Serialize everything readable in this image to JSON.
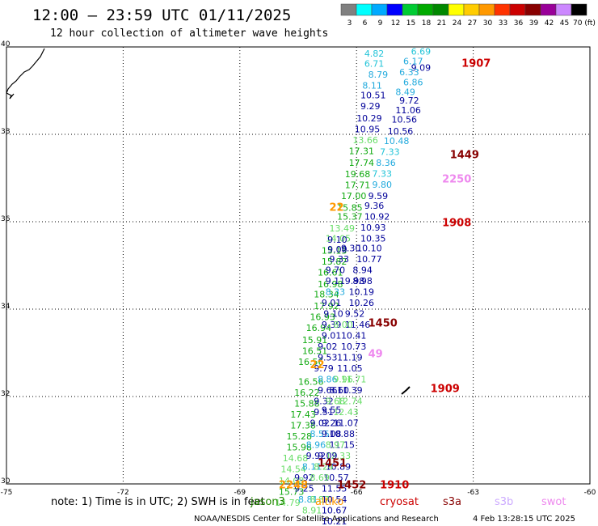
{
  "header": {
    "title": "12:00 – 23:59 UTC 01/11/2025",
    "subtitle": "12 hour collection of altimeter wave heights"
  },
  "colorbar": {
    "labels": [
      "3",
      "6",
      "9",
      "12",
      "15",
      "18",
      "21",
      "24",
      "27",
      "30",
      "33",
      "36",
      "39",
      "42",
      "45",
      "70 (ft)"
    ],
    "colors": [
      "#808080",
      "#00ffff",
      "#00aaff",
      "#0000ff",
      "#00cc33",
      "#00aa00",
      "#008800",
      "#ffff00",
      "#ffcc00",
      "#ff9900",
      "#ff3300",
      "#cc0000",
      "#880000",
      "#990099",
      "#cc88ff",
      "#000000"
    ]
  },
  "axes": {
    "lon_labels": [
      "-75",
      "-72",
      "-69",
      "-66",
      "-63",
      "-60"
    ],
    "lat_labels": [
      "40",
      "38",
      "36",
      "34",
      "32",
      "30"
    ]
  },
  "chart_data": {
    "type": "scatter",
    "xlim": [
      -75,
      -60
    ],
    "ylim": [
      30,
      40
    ],
    "grid": true,
    "points": [
      {
        "lon": -65.8,
        "lat": 39.78,
        "text": "4.82",
        "color": "#22c4d8"
      },
      {
        "lon": -65.8,
        "lat": 39.55,
        "text": "6.71",
        "color": "#22c4d8"
      },
      {
        "lon": -65.7,
        "lat": 39.3,
        "text": "8.79",
        "color": "#22aadd"
      },
      {
        "lon": -65.85,
        "lat": 39.05,
        "text": "8.11",
        "color": "#22aadd"
      },
      {
        "lon": -65.9,
        "lat": 38.82,
        "text": "10.51",
        "color": "#000099"
      },
      {
        "lon": -65.9,
        "lat": 38.57,
        "text": "9.29",
        "color": "#000099"
      },
      {
        "lon": -66.0,
        "lat": 38.3,
        "text": "10.29",
        "color": "#000099"
      },
      {
        "lon": -66.05,
        "lat": 38.05,
        "text": "10.95",
        "color": "#000099"
      },
      {
        "lon": -66.1,
        "lat": 37.8,
        "text": "13.66",
        "color": "#66dd66"
      },
      {
        "lon": -66.2,
        "lat": 37.55,
        "text": "17.31",
        "color": "#11aa11"
      },
      {
        "lon": -66.2,
        "lat": 37.28,
        "text": "17.74",
        "color": "#11aa11"
      },
      {
        "lon": -66.3,
        "lat": 37.02,
        "text": "19.68",
        "color": "#11aa11"
      },
      {
        "lon": -66.3,
        "lat": 36.77,
        "text": "17.71",
        "color": "#11aa11"
      },
      {
        "lon": -66.4,
        "lat": 36.52,
        "text": "17.00",
        "color": "#11aa11"
      },
      {
        "lon": -66.5,
        "lat": 36.25,
        "text": "15.85",
        "color": "#11aa11"
      },
      {
        "lon": -66.5,
        "lat": 36.05,
        "text": "15.37",
        "color": "#11aa11"
      },
      {
        "lon": -66.7,
        "lat": 35.78,
        "text": "13.49",
        "color": "#66dd66"
      },
      {
        "lon": -66.8,
        "lat": 35.55,
        "text": "14.05",
        "color": "#66dd66"
      },
      {
        "lon": -66.9,
        "lat": 35.27,
        "text": "15.13",
        "color": "#11aa11"
      },
      {
        "lon": -66.9,
        "lat": 35.02,
        "text": "15.82",
        "color": "#11aa11"
      },
      {
        "lon": -67.0,
        "lat": 34.77,
        "text": "16.61",
        "color": "#11aa11"
      },
      {
        "lon": -67.0,
        "lat": 34.5,
        "text": "16.98",
        "color": "#11aa11"
      },
      {
        "lon": -67.1,
        "lat": 34.27,
        "text": "18.34",
        "color": "#11aa11"
      },
      {
        "lon": -67.1,
        "lat": 34.0,
        "text": "17.92",
        "color": "#11aa11"
      },
      {
        "lon": -67.2,
        "lat": 33.75,
        "text": "16.93",
        "color": "#11aa11"
      },
      {
        "lon": -67.3,
        "lat": 33.5,
        "text": "16.94",
        "color": "#11aa11"
      },
      {
        "lon": -67.4,
        "lat": 33.22,
        "text": "15.91",
        "color": "#11aa11"
      },
      {
        "lon": -67.4,
        "lat": 32.97,
        "text": "16.51",
        "color": "#11aa11"
      },
      {
        "lon": -67.5,
        "lat": 32.72,
        "text": "16.56",
        "color": "#11aa11"
      },
      {
        "lon": -67.5,
        "lat": 32.27,
        "text": "16.56",
        "color": "#11aa11"
      },
      {
        "lon": -67.6,
        "lat": 32.02,
        "text": "16.22",
        "color": "#11aa11"
      },
      {
        "lon": -67.6,
        "lat": 31.77,
        "text": "15.88",
        "color": "#11aa11"
      },
      {
        "lon": -67.7,
        "lat": 31.52,
        "text": "17.43",
        "color": "#11aa11"
      },
      {
        "lon": -67.7,
        "lat": 31.27,
        "text": "17.38",
        "color": "#11aa11"
      },
      {
        "lon": -67.8,
        "lat": 31.02,
        "text": "15.28",
        "color": "#11aa11"
      },
      {
        "lon": -67.8,
        "lat": 30.77,
        "text": "15.98",
        "color": "#11aa11"
      },
      {
        "lon": -67.9,
        "lat": 30.52,
        "text": "14.68",
        "color": "#66dd66"
      },
      {
        "lon": -67.95,
        "lat": 30.27,
        "text": "14.54",
        "color": "#66dd66"
      },
      {
        "lon": -68.0,
        "lat": 30.0,
        "text": "14.08",
        "color": "#66dd66"
      },
      {
        "lon": -68.0,
        "lat": 29.75,
        "text": "15.73",
        "color": "#11aa11"
      },
      {
        "lon": -68.1,
        "lat": 29.5,
        "text": "14.79",
        "color": "#66dd66"
      },
      {
        "lon": -64.6,
        "lat": 39.82,
        "text": "6.69",
        "color": "#22c4d8"
      },
      {
        "lon": -64.8,
        "lat": 39.6,
        "text": "6.17",
        "color": "#22aadd"
      },
      {
        "lon": -64.6,
        "lat": 39.45,
        "text": "9.09",
        "color": "#000099"
      },
      {
        "lon": -64.9,
        "lat": 39.35,
        "text": "6.33",
        "color": "#22aadd"
      },
      {
        "lon": -64.8,
        "lat": 39.12,
        "text": "6.86",
        "color": "#22aadd"
      },
      {
        "lon": -65.0,
        "lat": 38.9,
        "text": "8.49",
        "color": "#22aadd"
      },
      {
        "lon": -64.9,
        "lat": 38.7,
        "text": "9.72",
        "color": "#000099"
      },
      {
        "lon": -65.0,
        "lat": 38.48,
        "text": "11.06",
        "color": "#000099"
      },
      {
        "lon": -65.1,
        "lat": 38.27,
        "text": "10.56",
        "color": "#000099"
      },
      {
        "lon": -65.2,
        "lat": 38.0,
        "text": "10.56",
        "color": "#000099"
      },
      {
        "lon": -65.3,
        "lat": 37.78,
        "text": "10.48",
        "color": "#22aadd"
      },
      {
        "lon": -65.4,
        "lat": 37.53,
        "text": "7.33",
        "color": "#22c4d8"
      },
      {
        "lon": -65.5,
        "lat": 37.28,
        "text": "8.36",
        "color": "#22aadd"
      },
      {
        "lon": -65.6,
        "lat": 37.03,
        "text": "7.33",
        "color": "#22c4d8"
      },
      {
        "lon": -65.6,
        "lat": 36.78,
        "text": "9.80",
        "color": "#22aadd"
      },
      {
        "lon": -65.7,
        "lat": 36.52,
        "text": "9.59",
        "color": "#000099"
      },
      {
        "lon": -65.8,
        "lat": 36.3,
        "text": "9.36",
        "color": "#000099"
      },
      {
        "lon": -65.8,
        "lat": 36.05,
        "text": "10.92",
        "color": "#000099"
      },
      {
        "lon": -65.9,
        "lat": 35.8,
        "text": "10.93",
        "color": "#000099"
      },
      {
        "lon": -65.9,
        "lat": 35.55,
        "text": "10.35",
        "color": "#000099"
      },
      {
        "lon": -66.0,
        "lat": 35.32,
        "text": "10.10",
        "color": "#000099"
      },
      {
        "lon": -66.0,
        "lat": 35.07,
        "text": "10.77",
        "color": "#000099"
      },
      {
        "lon": -66.1,
        "lat": 34.82,
        "text": "8.94",
        "color": "#000099"
      },
      {
        "lon": -66.1,
        "lat": 34.57,
        "text": "8.98",
        "color": "#000099"
      },
      {
        "lon": -66.2,
        "lat": 34.32,
        "text": "10.19",
        "color": "#000099"
      },
      {
        "lon": -66.2,
        "lat": 34.07,
        "text": "10.26",
        "color": "#000099"
      },
      {
        "lon": -66.3,
        "lat": 33.82,
        "text": "9.52",
        "color": "#000099"
      },
      {
        "lon": -66.3,
        "lat": 33.57,
        "text": "11.46",
        "color": "#000099"
      },
      {
        "lon": -66.4,
        "lat": 33.32,
        "text": "10.41",
        "color": "#000099"
      },
      {
        "lon": -66.4,
        "lat": 33.07,
        "text": "10.73",
        "color": "#000099"
      },
      {
        "lon": -66.5,
        "lat": 32.82,
        "text": "11.19",
        "color": "#000099"
      },
      {
        "lon": -66.5,
        "lat": 32.57,
        "text": "11.05",
        "color": "#000099"
      },
      {
        "lon": -66.4,
        "lat": 32.32,
        "text": "11.71",
        "color": "#66dd66"
      },
      {
        "lon": -66.5,
        "lat": 32.07,
        "text": "11.39",
        "color": "#000099"
      },
      {
        "lon": -66.5,
        "lat": 31.82,
        "text": "12.74",
        "color": "#66dd66"
      },
      {
        "lon": -66.6,
        "lat": 31.57,
        "text": "12.43",
        "color": "#66dd66"
      },
      {
        "lon": -66.6,
        "lat": 31.32,
        "text": "11.07",
        "color": "#000099"
      },
      {
        "lon": -66.7,
        "lat": 31.07,
        "text": "10.88",
        "color": "#000099"
      },
      {
        "lon": -66.7,
        "lat": 30.82,
        "text": "11.15",
        "color": "#000099"
      },
      {
        "lon": -66.8,
        "lat": 30.57,
        "text": "12.33",
        "color": "#66dd66"
      },
      {
        "lon": -66.8,
        "lat": 30.32,
        "text": "10.89",
        "color": "#000099"
      },
      {
        "lon": -66.85,
        "lat": 30.07,
        "text": "10.57",
        "color": "#000099"
      },
      {
        "lon": -66.9,
        "lat": 29.82,
        "text": "11.55",
        "color": "#000099"
      },
      {
        "lon": -66.9,
        "lat": 29.57,
        "text": "10.54",
        "color": "#000099"
      },
      {
        "lon": -66.9,
        "lat": 29.32,
        "text": "10.67",
        "color": "#000099"
      },
      {
        "lon": -66.9,
        "lat": 29.07,
        "text": "10.21",
        "color": "#000099"
      },
      {
        "lon": -66.75,
        "lat": 35.52,
        "text": "9.10",
        "color": "#000099"
      },
      {
        "lon": -66.75,
        "lat": 35.3,
        "text": "9.00",
        "color": "#000099"
      },
      {
        "lon": -66.7,
        "lat": 35.07,
        "text": "9.33",
        "color": "#000099"
      },
      {
        "lon": -66.8,
        "lat": 34.82,
        "text": "9.70",
        "color": "#000099"
      },
      {
        "lon": -66.8,
        "lat": 34.57,
        "text": "9.11",
        "color": "#000099"
      },
      {
        "lon": -66.8,
        "lat": 34.32,
        "text": "8.33",
        "color": "#22aadd"
      },
      {
        "lon": -66.9,
        "lat": 34.07,
        "text": "9.01",
        "color": "#000099"
      },
      {
        "lon": -66.85,
        "lat": 33.82,
        "text": "9.10",
        "color": "#000099"
      },
      {
        "lon": -66.9,
        "lat": 33.57,
        "text": "9.39",
        "color": "#000099"
      },
      {
        "lon": -66.9,
        "lat": 33.32,
        "text": "9.01",
        "color": "#000099"
      },
      {
        "lon": -67.0,
        "lat": 33.07,
        "text": "9.02",
        "color": "#000099"
      },
      {
        "lon": -67.0,
        "lat": 32.82,
        "text": "9.53",
        "color": "#000099"
      },
      {
        "lon": -67.1,
        "lat": 32.57,
        "text": "9.79",
        "color": "#000099"
      },
      {
        "lon": -67.0,
        "lat": 32.32,
        "text": "8.86",
        "color": "#22aadd"
      },
      {
        "lon": -67.0,
        "lat": 32.07,
        "text": "9.66",
        "color": "#000099"
      },
      {
        "lon": -67.1,
        "lat": 31.82,
        "text": "9.32",
        "color": "#000099"
      },
      {
        "lon": -67.1,
        "lat": 31.57,
        "text": "9.51",
        "color": "#000099"
      },
      {
        "lon": -67.2,
        "lat": 31.32,
        "text": "9.02",
        "color": "#000099"
      },
      {
        "lon": -67.2,
        "lat": 31.07,
        "text": "8.55",
        "color": "#22aadd"
      },
      {
        "lon": -67.3,
        "lat": 30.82,
        "text": "8.96",
        "color": "#22aadd"
      },
      {
        "lon": -67.3,
        "lat": 30.57,
        "text": "9.92",
        "color": "#000099"
      },
      {
        "lon": -67.4,
        "lat": 30.32,
        "text": "8.11",
        "color": "#22aadd"
      },
      {
        "lon": -67.6,
        "lat": 30.07,
        "text": "9.92",
        "color": "#000099"
      },
      {
        "lon": -67.6,
        "lat": 29.82,
        "text": "9.25",
        "color": "#000099"
      },
      {
        "lon": -67.5,
        "lat": 29.57,
        "text": "8.81",
        "color": "#22aadd"
      },
      {
        "lon": -66.4,
        "lat": 35.32,
        "text": "9.30",
        "color": "#000099"
      },
      {
        "lon": -66.3,
        "lat": 34.57,
        "text": "9.98",
        "color": "#000099"
      },
      {
        "lon": -66.9,
        "lat": 31.62,
        "text": "9.55",
        "color": "#000099"
      },
      {
        "lon": -66.9,
        "lat": 31.32,
        "text": "9.26",
        "color": "#000099"
      },
      {
        "lon": -66.9,
        "lat": 31.07,
        "text": "9.08",
        "color": "#000099"
      },
      {
        "lon": -66.8,
        "lat": 30.82,
        "text": "8.97",
        "color": "#66dd66"
      },
      {
        "lon": -67.0,
        "lat": 30.57,
        "text": "9.09",
        "color": "#000099"
      },
      {
        "lon": -67.1,
        "lat": 30.32,
        "text": "8.24",
        "color": "#66dd66"
      },
      {
        "lon": -67.2,
        "lat": 30.07,
        "text": "8.69",
        "color": "#66dd66"
      },
      {
        "lon": -67.2,
        "lat": 29.57,
        "text": "8.87",
        "color": "#66dd66"
      },
      {
        "lon": -67.4,
        "lat": 29.32,
        "text": "8.91",
        "color": "#66dd66"
      },
      {
        "lon": -66.6,
        "lat": 32.32,
        "text": "9.96",
        "color": "#66dd66"
      },
      {
        "lon": -66.7,
        "lat": 32.07,
        "text": "8.60",
        "color": "#000099"
      },
      {
        "lon": -66.8,
        "lat": 31.82,
        "text": "9.68",
        "color": "#66dd66"
      },
      {
        "lon": -66.6,
        "lat": 33.57,
        "text": "8.00",
        "color": "#66dd66"
      }
    ],
    "labels": [
      {
        "lon": -63.3,
        "lat": 39.55,
        "text": "1907",
        "color": "#cc0000"
      },
      {
        "lon": -63.6,
        "lat": 37.45,
        "text": "1449",
        "color": "#880000"
      },
      {
        "lon": -63.8,
        "lat": 36.9,
        "text": "2250",
        "color": "#ee88ee"
      },
      {
        "lon": -63.8,
        "lat": 35.9,
        "text": "1908",
        "color": "#cc0000"
      },
      {
        "lon": -66.7,
        "lat": 36.25,
        "text": "22",
        "color": "#ff9900"
      },
      {
        "lon": -65.7,
        "lat": 33.6,
        "text": "1450",
        "color": "#880000"
      },
      {
        "lon": -65.7,
        "lat": 32.9,
        "text": "49",
        "color": "#ee88ee"
      },
      {
        "lon": -67.2,
        "lat": 32.65,
        "text": "22",
        "color": "#ff9900"
      },
      {
        "lon": -64.1,
        "lat": 32.1,
        "text": "1909",
        "color": "#cc0000"
      },
      {
        "lon": -67.0,
        "lat": 30.4,
        "text": "1451",
        "color": "#880000"
      },
      {
        "lon": -66.5,
        "lat": 29.9,
        "text": "1452",
        "color": "#880000"
      },
      {
        "lon": -65.4,
        "lat": 29.9,
        "text": "1910",
        "color": "#cc0000"
      },
      {
        "lon": -68.0,
        "lat": 29.9,
        "text": "2248",
        "color": "#ff9900"
      }
    ]
  },
  "footer": {
    "note": "note: 1) Time is in UTC; 2) SWH is in feet",
    "satellites": [
      {
        "name": "jason3",
        "color": "#228800"
      },
      {
        "name": "altiko",
        "color": "#ff9900"
      },
      {
        "name": "cryosat",
        "color": "#cc0000"
      },
      {
        "name": "s3a",
        "color": "#880000"
      },
      {
        "name": "s3b",
        "color": "#ccaaff"
      },
      {
        "name": "swot",
        "color": "#ee88ee"
      }
    ],
    "credit": "NOAA/NESDIS Center for Satellite Applications and Research",
    "timestamp": "4 Feb 13:28:15 UTC 2025"
  }
}
